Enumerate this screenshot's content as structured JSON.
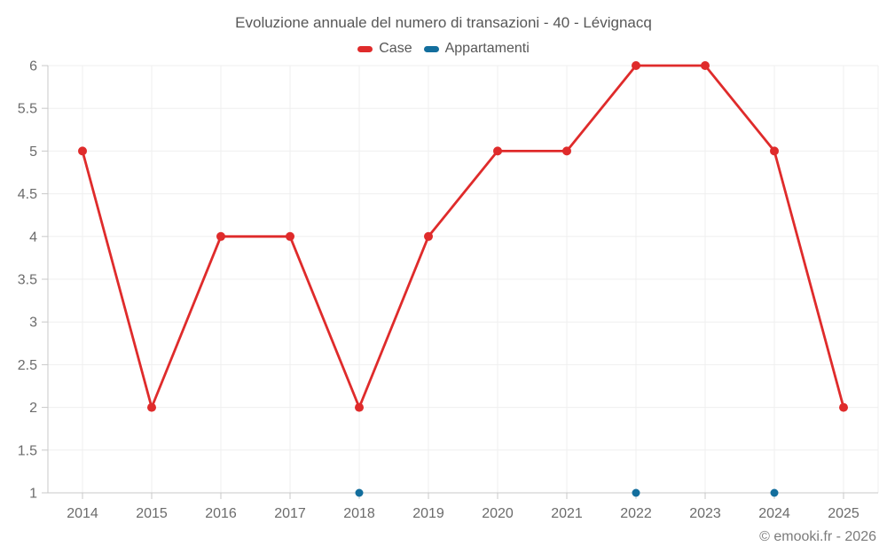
{
  "footer": {
    "credit": "© emooki.fr - 2026"
  },
  "chart_data": {
    "type": "line",
    "title": "Evoluzione annuale del numero di transazioni - 40 - Lévignacq",
    "xlabel": "",
    "ylabel": "",
    "x": [
      "2014",
      "2015",
      "2016",
      "2017",
      "2018",
      "2019",
      "2020",
      "2021",
      "2022",
      "2023",
      "2024",
      "2025"
    ],
    "series": [
      {
        "name": "Case",
        "color": "#df2b2b",
        "values": [
          5,
          2,
          4,
          4,
          2,
          4,
          5,
          5,
          6,
          6,
          5,
          2
        ]
      },
      {
        "name": "Appartamenti",
        "color": "#136e9d",
        "values": [
          null,
          null,
          null,
          null,
          1,
          null,
          null,
          null,
          1,
          null,
          1,
          null
        ]
      }
    ],
    "ylim": [
      1,
      6
    ],
    "ytick_step": 0.5,
    "yticks": [
      1,
      1.5,
      2,
      2.5,
      3,
      3.5,
      4,
      4.5,
      5,
      5.5,
      6
    ],
    "grid": true,
    "legend_position": "top",
    "grid_color": "#efefef",
    "axis_color": "#c9c9c9",
    "label_color": "#6b6b6b"
  }
}
